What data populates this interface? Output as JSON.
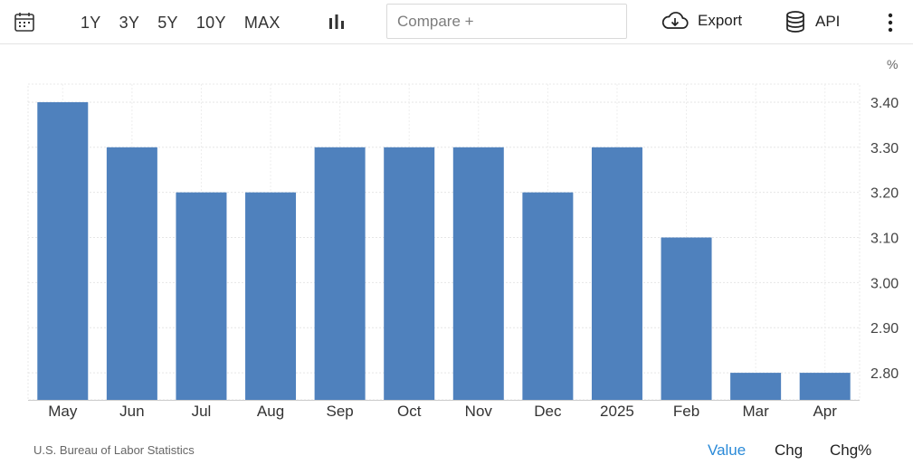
{
  "toolbar": {
    "ranges": [
      "1Y",
      "3Y",
      "5Y",
      "10Y",
      "MAX"
    ],
    "compare_placeholder": "Compare +",
    "export_label": "Export",
    "api_label": "API"
  },
  "colors": {
    "bar": "#4f81bd",
    "grid": "#e6e6e6",
    "active_mode": "#2a8ad8"
  },
  "chart_data": {
    "type": "bar",
    "unit": "%",
    "categories": [
      "May",
      "Jun",
      "Jul",
      "Aug",
      "Sep",
      "Oct",
      "Nov",
      "Dec",
      "2025",
      "Feb",
      "Mar",
      "Apr"
    ],
    "values": [
      3.4,
      3.3,
      3.2,
      3.2,
      3.3,
      3.3,
      3.3,
      3.2,
      3.3,
      3.1,
      2.8,
      2.8
    ],
    "yticks": [
      "3.40",
      "3.30",
      "3.20",
      "3.10",
      "3.00",
      "2.90",
      "2.80"
    ],
    "ylim": [
      2.74,
      3.44
    ],
    "grid": true,
    "y_axis_side": "right"
  },
  "footer": {
    "source": "U.S. Bureau of Labor Statistics",
    "modes": [
      "Value",
      "Chg",
      "Chg%"
    ],
    "active_mode": "Value"
  }
}
